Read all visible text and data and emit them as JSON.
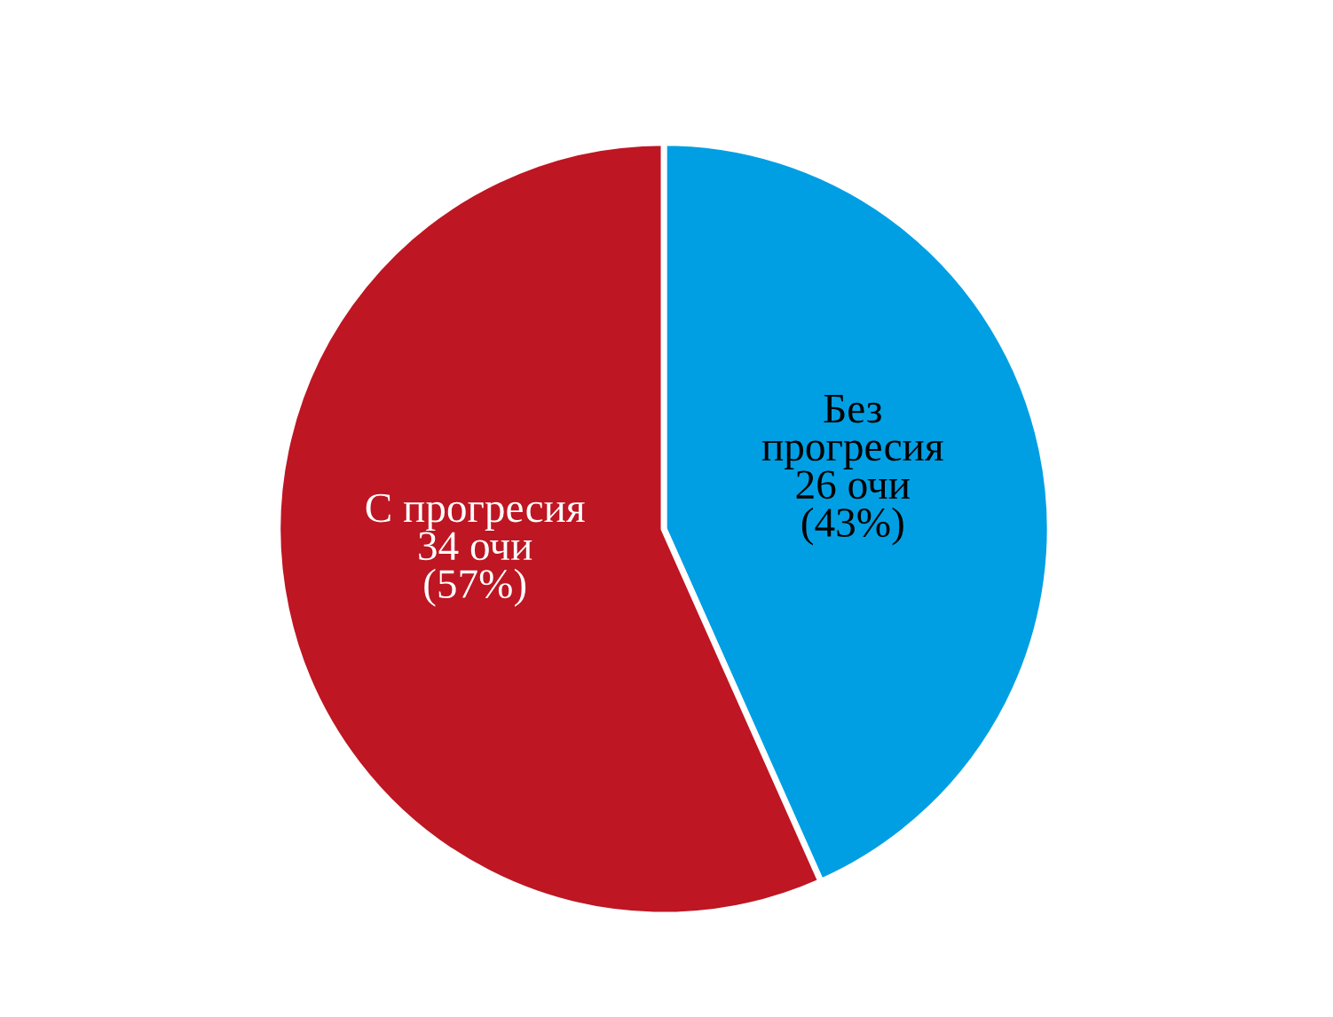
{
  "chart_data": {
    "type": "pie",
    "categories": [
      "Без\nпрогресия",
      "С прогресия"
    ],
    "values": [
      26,
      34
    ],
    "value_labels": [
      "26 очи\n(43%)",
      "34 очи\n(57%)"
    ],
    "colors": [
      "#009fe3",
      "#be1622"
    ],
    "legend": false
  }
}
